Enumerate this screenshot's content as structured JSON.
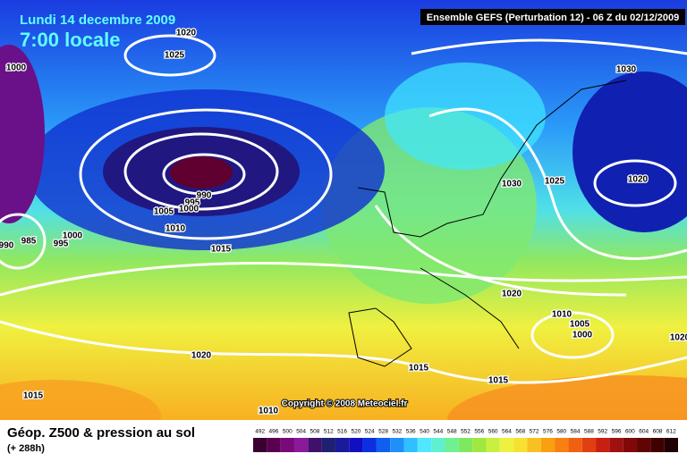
{
  "header": {
    "date": "Lundi 14 decembre 2009",
    "time": "7:00 locale",
    "run": "Ensemble GEFS (Perturbation 12)  -  06 Z du 02/12/2009"
  },
  "isobars": [
    "1020",
    "1025",
    "1000",
    "990",
    "995",
    "1000",
    "1005",
    "1010",
    "1015",
    "990",
    "985",
    "995",
    "1000",
    "1030",
    "1030",
    "1025",
    "1020",
    "1020",
    "1010",
    "1005",
    "1000",
    "1015",
    "1020",
    "1015",
    "1015",
    "1010",
    "1020"
  ],
  "copyright": "Copyright © 2008 Meteociel.fr",
  "legend": {
    "title": "Géop. Z500 & pression au sol",
    "lead": "(+ 288h)",
    "values": [
      492,
      496,
      500,
      504,
      508,
      512,
      516,
      520,
      524,
      528,
      532,
      536,
      540,
      544,
      548,
      552,
      556,
      560,
      564,
      568,
      572,
      576,
      580,
      584,
      588,
      592,
      596,
      600,
      604,
      608,
      612
    ],
    "colors": [
      "#3a0030",
      "#5a0050",
      "#7a0a7a",
      "#8a1a9a",
      "#40106a",
      "#202070",
      "#1a1a9a",
      "#1010c0",
      "#0a30e0",
      "#1060f0",
      "#2090f8",
      "#30c0ff",
      "#50e8ff",
      "#60f0d0",
      "#70f090",
      "#80e860",
      "#a0e840",
      "#c8f040",
      "#f0f040",
      "#f8e030",
      "#f8c020",
      "#f8a010",
      "#f88010",
      "#f06010",
      "#e04010",
      "#c82010",
      "#a01010",
      "#800808",
      "#600404",
      "#400000",
      "#200000"
    ]
  }
}
